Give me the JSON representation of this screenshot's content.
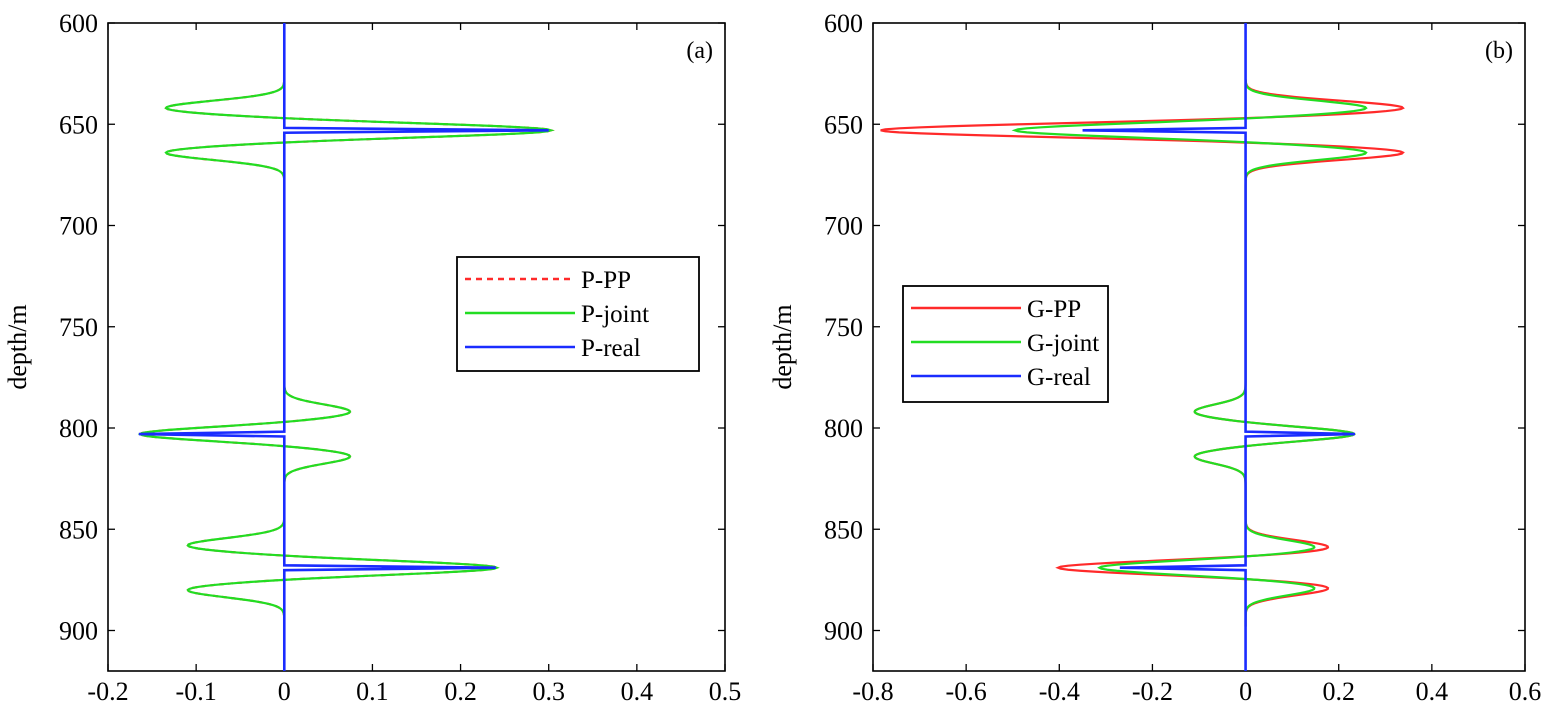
{
  "chart_data": [
    {
      "type": "line",
      "panel_label": "(a)",
      "xlabel": "",
      "ylabel": "depth/m",
      "xlim": [
        -0.2,
        0.5
      ],
      "ylim": [
        600,
        920
      ],
      "y_reversed": true,
      "xticks": [
        -0.2,
        -0.1,
        0,
        0.1,
        0.2,
        0.3,
        0.4,
        0.5
      ],
      "xtick_labels": [
        "-0.2",
        "-0.1",
        "0",
        "0.1",
        "0.2",
        "0.3",
        "0.4",
        "0.5"
      ],
      "yticks": [
        600,
        650,
        700,
        750,
        800,
        850,
        900
      ],
      "ytick_labels": [
        "600",
        "650",
        "700",
        "750",
        "800",
        "850",
        "900"
      ],
      "grid": false,
      "legend_position": "right",
      "series": [
        {
          "name": "P-PP",
          "color": "#ff2a2a",
          "style": "dashed"
        },
        {
          "name": "P-joint",
          "color": "#22dd22",
          "style": "solid"
        },
        {
          "name": "P-real",
          "color": "#1a2cff",
          "style": "solid"
        }
      ],
      "reflectors": [
        {
          "depth": 653,
          "real": 0.3,
          "pp": 0.305,
          "joint": 0.305,
          "side_lobe": -0.135,
          "lobe_offset": 11
        },
        {
          "depth": 803,
          "real": -0.165,
          "pp": -0.165,
          "joint": -0.165,
          "side_lobe": 0.075,
          "lobe_offset": 11
        },
        {
          "depth": 869,
          "real": 0.24,
          "pp": 0.243,
          "joint": 0.243,
          "side_lobe": -0.11,
          "lobe_offset": 11
        }
      ]
    },
    {
      "type": "line",
      "panel_label": "(b)",
      "xlabel": "",
      "ylabel": "depth/m",
      "xlim": [
        -0.8,
        0.6
      ],
      "ylim": [
        600,
        920
      ],
      "y_reversed": true,
      "xticks": [
        -0.8,
        -0.6,
        -0.4,
        -0.2,
        0,
        0.2,
        0.4,
        0.6
      ],
      "xtick_labels": [
        "-0.8",
        "-0.6",
        "-0.4",
        "-0.2",
        "0",
        "0.2",
        "0.4",
        "0.6"
      ],
      "yticks": [
        600,
        650,
        700,
        750,
        800,
        850,
        900
      ],
      "ytick_labels": [
        "600",
        "650",
        "700",
        "750",
        "800",
        "850",
        "900"
      ],
      "grid": false,
      "legend_position": "left",
      "series": [
        {
          "name": "G-PP",
          "color": "#ff2a2a",
          "style": "solid"
        },
        {
          "name": "G-joint",
          "color": "#22dd22",
          "style": "solid"
        },
        {
          "name": "G-real",
          "color": "#1a2cff",
          "style": "solid"
        }
      ],
      "reflectors": [
        {
          "depth": 653,
          "real": -0.35,
          "pp": -0.79,
          "joint": -0.5,
          "side_lobe_pp": 0.34,
          "side_lobe_joint": 0.26,
          "lobe_offset": 11
        },
        {
          "depth": 803,
          "real": 0.235,
          "pp": 0.235,
          "joint": 0.235,
          "side_lobe_pp": -0.11,
          "side_lobe_joint": -0.11,
          "lobe_offset": 11
        },
        {
          "depth": 869,
          "real": -0.27,
          "pp": -0.41,
          "joint": -0.32,
          "side_lobe_pp": 0.18,
          "side_lobe_joint": 0.15,
          "lobe_offset": 10
        }
      ]
    }
  ]
}
